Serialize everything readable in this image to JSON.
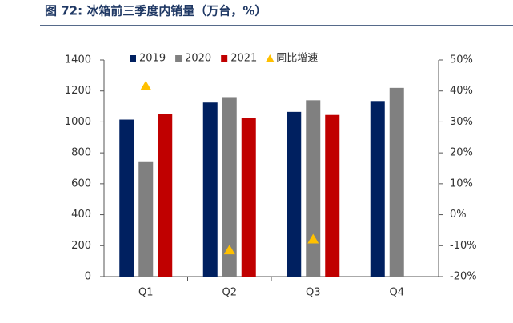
{
  "chart_data": {
    "type": "bar",
    "title": "图 72: 冰箱前三季度内销量（万台，%）",
    "categories": [
      "Q1",
      "Q2",
      "Q3",
      "Q4"
    ],
    "series": [
      {
        "name": "2019",
        "color": "#002060",
        "values": [
          1015,
          1125,
          1065,
          1135
        ]
      },
      {
        "name": "2020",
        "color": "#808080",
        "values": [
          740,
          1160,
          1140,
          1220
        ]
      },
      {
        "name": "2021",
        "color": "#c00000",
        "values": [
          1050,
          1025,
          1045,
          null
        ]
      },
      {
        "name": "同比增速",
        "color": "#ffc000",
        "type": "scatter",
        "axis": "y2",
        "values": [
          41.5,
          -11.5,
          -8,
          null
        ]
      }
    ],
    "ylim": [
      0,
      1400
    ],
    "yticks": [
      0,
      200,
      400,
      600,
      800,
      1000,
      1200,
      1400
    ],
    "y2lim": [
      -20,
      50
    ],
    "y2ticks": [
      {
        "value": -20,
        "label": "-20%"
      },
      {
        "value": -10,
        "label": "-10%"
      },
      {
        "value": 0,
        "label": "0%"
      },
      {
        "value": 10,
        "label": "10%"
      },
      {
        "value": 20,
        "label": "20%"
      },
      {
        "value": 30,
        "label": "30%"
      },
      {
        "value": 40,
        "label": "40%"
      },
      {
        "value": 50,
        "label": "50%"
      }
    ],
    "grid": false
  }
}
